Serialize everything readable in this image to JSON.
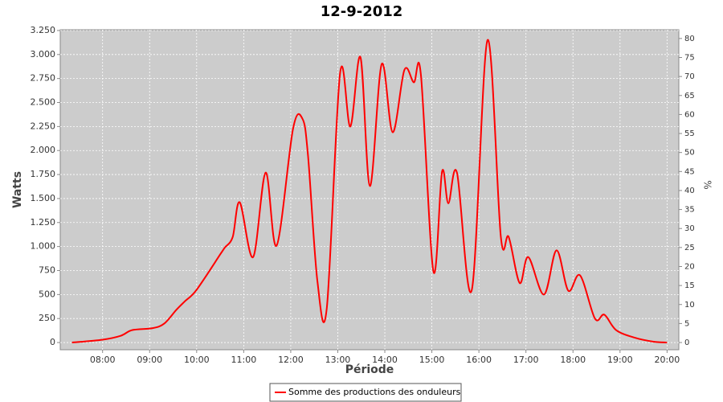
{
  "chart_data": {
    "type": "line",
    "title": "12-9-2012",
    "x_label": "Période",
    "y_label": "Watts",
    "y2_label": "%",
    "x": [
      "07:21",
      "08:00",
      "08:23",
      "08:38",
      "09:04",
      "09:19",
      "09:34",
      "09:45",
      "10:00",
      "10:31",
      "10:36",
      "10:46",
      "10:55",
      "11:12",
      "11:28",
      "11:42",
      "12:03",
      "12:15",
      "12:22",
      "12:34",
      "12:46",
      "13:03",
      "13:16",
      "13:29",
      "13:41",
      "13:56",
      "14:10",
      "14:25",
      "14:37",
      "14:46",
      "15:02",
      "15:13",
      "15:21",
      "15:32",
      "15:51",
      "16:11",
      "16:28",
      "16:38",
      "16:52",
      "17:03",
      "17:23",
      "17:39",
      "17:54",
      "18:09",
      "18:28",
      "18:40",
      "18:55",
      "19:19",
      "19:42",
      "20:00"
    ],
    "series": [
      {
        "name": "Somme des productions des onduleurs",
        "color": "#ff0000",
        "values": [
          0,
          30,
          70,
          130,
          150,
          200,
          340,
          430,
          550,
          930,
          990,
          1100,
          1460,
          890,
          1770,
          1010,
          2230,
          2330,
          1950,
          640,
          360,
          2810,
          2250,
          2970,
          1630,
          2900,
          2190,
          2840,
          2710,
          2790,
          740,
          1780,
          1450,
          1770,
          550,
          3150,
          1100,
          1100,
          620,
          890,
          500,
          960,
          540,
          700,
          250,
          290,
          130,
          50,
          10,
          0
        ]
      }
    ],
    "xlim": [
      "07:06",
      "20:15"
    ],
    "xticks": [
      "08:00",
      "09:00",
      "10:00",
      "11:00",
      "12:00",
      "13:00",
      "14:00",
      "15:00",
      "16:00",
      "17:00",
      "18:00",
      "19:00",
      "20:00"
    ],
    "ylim": [
      -75,
      3258
    ],
    "yticks": [
      0,
      250,
      500,
      750,
      {
        "value": 1000,
        "label": "1.000"
      },
      {
        "value": 1250,
        "label": "1.250"
      },
      {
        "value": 1500,
        "label": "1.500"
      },
      {
        "value": 1750,
        "label": "1.750"
      },
      {
        "value": 2000,
        "label": "2.000"
      },
      {
        "value": 2250,
        "label": "2.250"
      },
      {
        "value": 2500,
        "label": "2.500"
      },
      {
        "value": 2750,
        "label": "2.750"
      },
      {
        "value": 3000,
        "label": "3.000"
      },
      {
        "value": 3250,
        "label": "3.250"
      }
    ],
    "y2lim": [
      -1.9,
      82.3
    ],
    "y2ticks": [
      0,
      5,
      10,
      15,
      20,
      25,
      30,
      35,
      40,
      45,
      50,
      55,
      60,
      65,
      70,
      75,
      80
    ],
    "grid": true,
    "plot_background": "#cccccc",
    "legend_position": "bottom"
  }
}
